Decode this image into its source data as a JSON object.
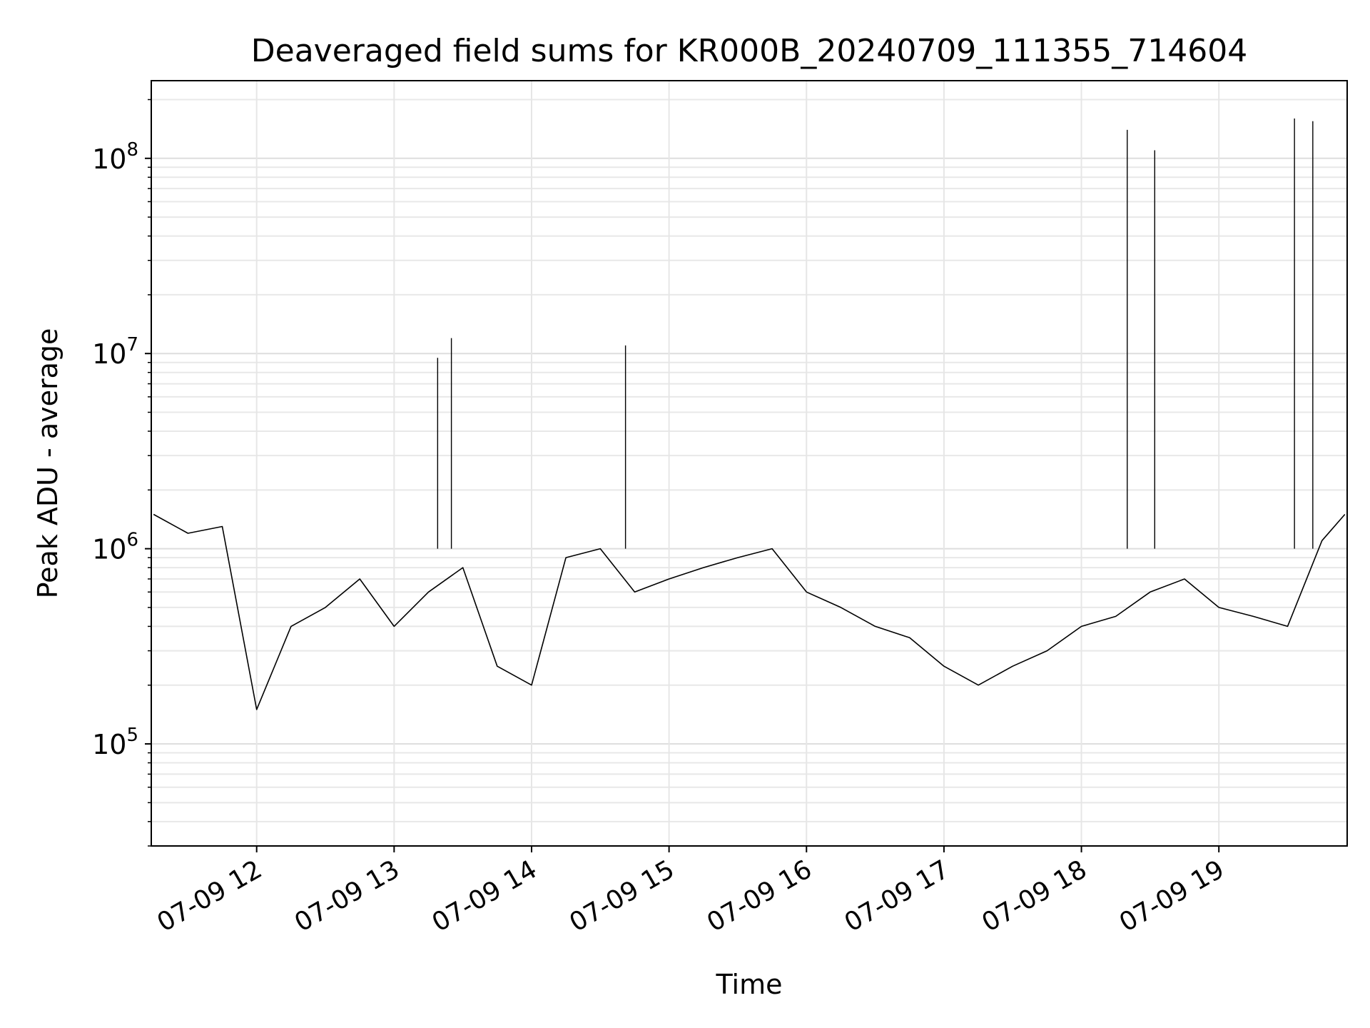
{
  "chart_data": {
    "type": "line",
    "title": "Deaveraged field sums for KR000B_20240709_111355_714604",
    "xlabel": "Time",
    "ylabel": "Peak ADU - average",
    "xlim": [
      "07-09 11:14",
      "07-09 19:56"
    ],
    "ylim": [
      30000,
      250000000
    ],
    "yscale": "log",
    "grid": true,
    "line_color": "#000000",
    "x_ticks": [
      "07-09 12",
      "07-09 13",
      "07-09 14",
      "07-09 15",
      "07-09 16",
      "07-09 17",
      "07-09 18",
      "07-09 19"
    ],
    "y_ticks": [
      {
        "base": "10",
        "exp": "5",
        "value": 100000
      },
      {
        "base": "10",
        "exp": "6",
        "value": 1000000
      },
      {
        "base": "10",
        "exp": "7",
        "value": 10000000
      },
      {
        "base": "10",
        "exp": "8",
        "value": 100000000
      }
    ],
    "series": [
      {
        "x": [
          "07-09 11:15",
          "07-09 11:30",
          "07-09 11:45",
          "07-09 12:00",
          "07-09 12:15",
          "07-09 12:30",
          "07-09 12:45",
          "07-09 13:00",
          "07-09 13:15",
          "07-09 13:30",
          "07-09 13:45",
          "07-09 14:00",
          "07-09 14:15",
          "07-09 14:30",
          "07-09 14:45",
          "07-09 15:00",
          "07-09 15:15",
          "07-09 15:30",
          "07-09 15:45",
          "07-09 16:00",
          "07-09 16:15",
          "07-09 16:30",
          "07-09 16:45",
          "07-09 17:00",
          "07-09 17:15",
          "07-09 17:30",
          "07-09 17:45",
          "07-09 18:00",
          "07-09 18:15",
          "07-09 18:30",
          "07-09 18:45",
          "07-09 19:00",
          "07-09 19:15",
          "07-09 19:30",
          "07-09 19:45",
          "07-09 19:55"
        ],
        "values": [
          1500000,
          1200000,
          1300000,
          150000,
          400000,
          500000,
          700000,
          400000,
          600000,
          800000,
          250000,
          200000,
          900000,
          1000000,
          600000,
          700000,
          800000,
          900000,
          1000000,
          600000,
          500000,
          400000,
          350000,
          250000,
          200000,
          250000,
          300000,
          400000,
          450000,
          600000,
          700000,
          500000,
          450000,
          400000,
          1100000,
          1500000
        ]
      }
    ],
    "annotations": [
      {
        "label": "spike",
        "x": "07-09 13:19",
        "y": 9500000
      },
      {
        "label": "spike",
        "x": "07-09 13:25",
        "y": 12000000
      },
      {
        "label": "spike",
        "x": "07-09 14:41",
        "y": 11000000
      },
      {
        "label": "spike",
        "x": "07-09 18:20",
        "y": 140000000
      },
      {
        "label": "spike",
        "x": "07-09 18:32",
        "y": 110000000
      },
      {
        "label": "spike",
        "x": "07-09 19:33",
        "y": 160000000
      },
      {
        "label": "spike",
        "x": "07-09 19:41",
        "y": 155000000
      }
    ]
  }
}
